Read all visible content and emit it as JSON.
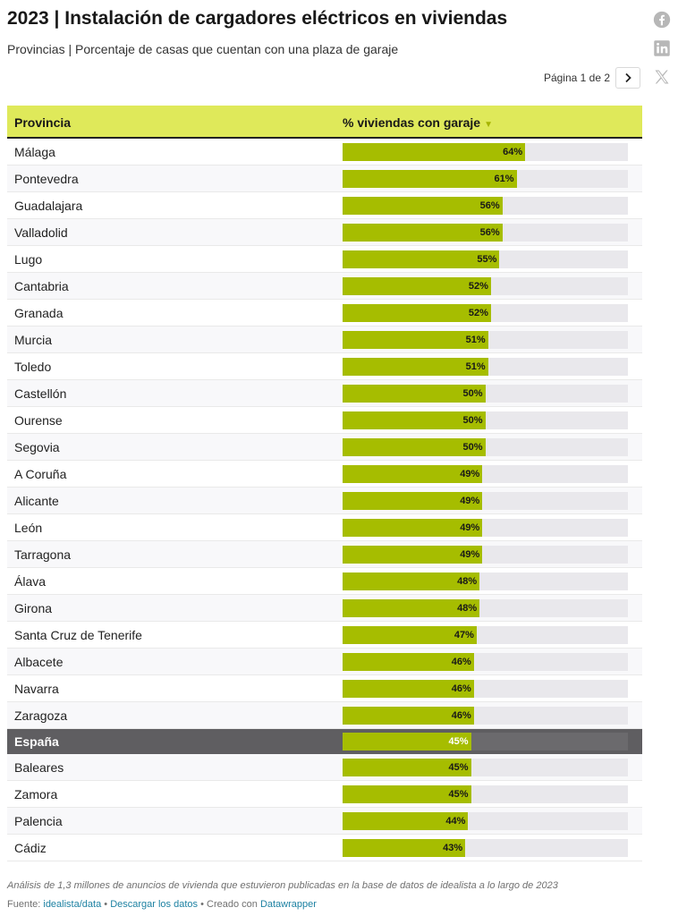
{
  "header": {
    "title": "2023 | Instalación de cargadores eléctricos en viviendas",
    "subtitle": "Provincias | Porcentaje de casas que cuentan con una plaza de garaje"
  },
  "social": {
    "icons": [
      "facebook-icon",
      "linkedin-icon",
      "x-icon"
    ],
    "color": "#b7b7b7"
  },
  "pagination": {
    "label": "Página 1 de 2",
    "next_icon": "chevron-right-icon"
  },
  "colors": {
    "header_bg": "#dfe95a",
    "bar": "#a6bd00",
    "track": "#e9e8ec",
    "highlight_row": "#5f5e61"
  },
  "chart_data": {
    "type": "table",
    "title": "2023 | Instalación de cargadores eléctricos en viviendas",
    "subtitle": "Provincias | Porcentaje de casas que cuentan con una plaza de garaje",
    "columns": [
      "Provincia",
      "% viviendas con garaje"
    ],
    "sort": "descending",
    "xlim": [
      0,
      100
    ],
    "unit": "%",
    "highlight": "España",
    "rows": [
      {
        "name": "Málaga",
        "value": 64
      },
      {
        "name": "Pontevedra",
        "value": 61
      },
      {
        "name": "Guadalajara",
        "value": 56
      },
      {
        "name": "Valladolid",
        "value": 56
      },
      {
        "name": "Lugo",
        "value": 55
      },
      {
        "name": "Cantabria",
        "value": 52
      },
      {
        "name": "Granada",
        "value": 52
      },
      {
        "name": "Murcia",
        "value": 51
      },
      {
        "name": "Toledo",
        "value": 51
      },
      {
        "name": "Castellón",
        "value": 50
      },
      {
        "name": "Ourense",
        "value": 50
      },
      {
        "name": "Segovia",
        "value": 50
      },
      {
        "name": "A Coruña",
        "value": 49
      },
      {
        "name": "Alicante",
        "value": 49
      },
      {
        "name": "León",
        "value": 49
      },
      {
        "name": "Tarragona",
        "value": 49
      },
      {
        "name": "Álava",
        "value": 48
      },
      {
        "name": "Girona",
        "value": 48
      },
      {
        "name": "Santa Cruz de Tenerife",
        "value": 47
      },
      {
        "name": "Albacete",
        "value": 46
      },
      {
        "name": "Navarra",
        "value": 46
      },
      {
        "name": "Zaragoza",
        "value": 46
      },
      {
        "name": "España",
        "value": 45
      },
      {
        "name": "Baleares",
        "value": 45
      },
      {
        "name": "Zamora",
        "value": 45
      },
      {
        "name": "Palencia",
        "value": 44
      },
      {
        "name": "Cádiz",
        "value": 43
      }
    ]
  },
  "footer": {
    "notes": "Análisis de 1,3 millones de anuncios de vivienda que estuvieron publicadas en la base de datos de idealista a lo largo de 2023",
    "source_label": "Fuente:",
    "source_link": "idealista/data",
    "separator": "•",
    "download_link": "Descargar los datos",
    "created_label": "Creado con",
    "created_link": "Datawrapper"
  }
}
